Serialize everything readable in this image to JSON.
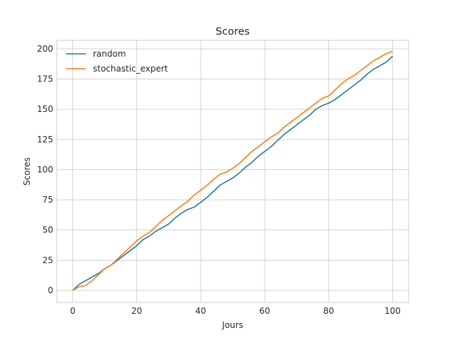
{
  "chart_data": {
    "type": "line",
    "title": "Scores",
    "xlabel": "Jours",
    "ylabel": "Scores",
    "xlim": [
      -5,
      105
    ],
    "ylim": [
      -10,
      207
    ],
    "xticks": [
      0,
      20,
      40,
      60,
      80,
      100
    ],
    "yticks": [
      0,
      25,
      50,
      75,
      100,
      125,
      150,
      175,
      200
    ],
    "grid": true,
    "legend_position": "top-left",
    "series": [
      {
        "name": "random",
        "color": "#1f77b4",
        "points": [
          [
            0,
            0
          ],
          [
            2,
            5
          ],
          [
            4,
            8
          ],
          [
            6,
            11
          ],
          [
            8,
            14
          ],
          [
            10,
            18
          ],
          [
            12,
            21
          ],
          [
            14,
            25
          ],
          [
            16,
            29
          ],
          [
            18,
            33
          ],
          [
            20,
            37
          ],
          [
            22,
            42
          ],
          [
            24,
            45
          ],
          [
            26,
            49
          ],
          [
            28,
            52
          ],
          [
            30,
            55
          ],
          [
            32,
            60
          ],
          [
            34,
            64
          ],
          [
            36,
            67
          ],
          [
            38,
            69
          ],
          [
            40,
            73
          ],
          [
            42,
            77
          ],
          [
            44,
            82
          ],
          [
            46,
            87
          ],
          [
            48,
            90
          ],
          [
            50,
            93
          ],
          [
            52,
            97
          ],
          [
            54,
            102
          ],
          [
            56,
            106
          ],
          [
            58,
            111
          ],
          [
            60,
            115
          ],
          [
            62,
            119
          ],
          [
            64,
            124
          ],
          [
            66,
            129
          ],
          [
            68,
            133
          ],
          [
            70,
            137
          ],
          [
            72,
            141
          ],
          [
            74,
            145
          ],
          [
            76,
            150
          ],
          [
            78,
            153
          ],
          [
            80,
            155
          ],
          [
            82,
            158
          ],
          [
            84,
            162
          ],
          [
            86,
            166
          ],
          [
            88,
            170
          ],
          [
            90,
            174
          ],
          [
            92,
            179
          ],
          [
            94,
            183
          ],
          [
            96,
            186
          ],
          [
            98,
            189
          ],
          [
            100,
            194
          ]
        ]
      },
      {
        "name": "stochastic_expert",
        "color": "#ff7f0e",
        "points": [
          [
            0,
            0
          ],
          [
            2,
            3
          ],
          [
            4,
            4
          ],
          [
            6,
            8
          ],
          [
            8,
            13
          ],
          [
            10,
            18
          ],
          [
            12,
            21
          ],
          [
            14,
            26
          ],
          [
            16,
            31
          ],
          [
            18,
            36
          ],
          [
            20,
            41
          ],
          [
            22,
            45
          ],
          [
            24,
            48
          ],
          [
            26,
            53
          ],
          [
            28,
            58
          ],
          [
            30,
            62
          ],
          [
            32,
            66
          ],
          [
            34,
            70
          ],
          [
            36,
            74
          ],
          [
            38,
            79
          ],
          [
            40,
            83
          ],
          [
            42,
            87
          ],
          [
            44,
            92
          ],
          [
            46,
            96
          ],
          [
            48,
            98
          ],
          [
            50,
            101
          ],
          [
            52,
            105
          ],
          [
            54,
            110
          ],
          [
            56,
            115
          ],
          [
            58,
            119
          ],
          [
            60,
            123
          ],
          [
            62,
            127
          ],
          [
            64,
            130
          ],
          [
            66,
            135
          ],
          [
            68,
            139
          ],
          [
            70,
            143
          ],
          [
            72,
            147
          ],
          [
            74,
            151
          ],
          [
            76,
            155
          ],
          [
            78,
            159
          ],
          [
            80,
            161
          ],
          [
            82,
            166
          ],
          [
            84,
            171
          ],
          [
            86,
            175
          ],
          [
            88,
            178
          ],
          [
            90,
            182
          ],
          [
            92,
            186
          ],
          [
            94,
            190
          ],
          [
            96,
            193
          ],
          [
            98,
            196
          ],
          [
            100,
            198
          ]
        ]
      }
    ]
  }
}
